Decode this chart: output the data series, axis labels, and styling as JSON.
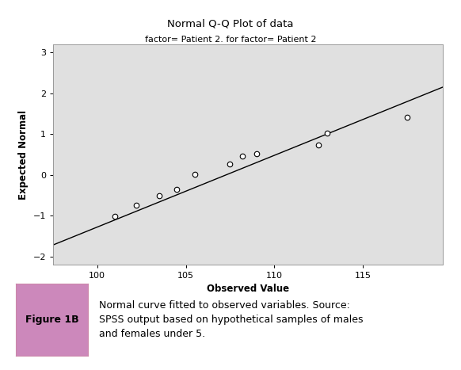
{
  "title": "Normal Q-Q Plot of data",
  "subtitle": "factor= Patient 2. for factor= Patient 2",
  "xlabel": "Observed Value",
  "ylabel": "Expected Normal",
  "xlim": [
    97.5,
    119.5
  ],
  "ylim": [
    -2.2,
    3.2
  ],
  "xticks": [
    100,
    105,
    110,
    115
  ],
  "yticks": [
    -2,
    -1,
    0,
    1,
    2,
    3
  ],
  "scatter_x": [
    101.0,
    102.2,
    103.5,
    104.5,
    105.5,
    107.5,
    108.2,
    109.0,
    112.5,
    113.0,
    117.5
  ],
  "scatter_y": [
    -1.02,
    -0.75,
    -0.52,
    -0.35,
    0.02,
    0.27,
    0.47,
    0.52,
    0.74,
    1.02,
    1.42
  ],
  "line_x": [
    97.5,
    119.5
  ],
  "line_y": [
    -1.72,
    2.15
  ],
  "plot_bg": "#e0e0e0",
  "fig_bg": "#ffffff",
  "border_color": "#cc88aa",
  "line_color": "#000000",
  "scatter_color": "#ffffff",
  "scatter_edge": "#000000",
  "title_fontsize": 9.5,
  "subtitle_fontsize": 8,
  "label_fontsize": 8.5,
  "tick_fontsize": 8,
  "figure_label": "Figure 1B",
  "figure_label_bg": "#cc88bb",
  "caption": "Normal curve fitted to observed variables. Source:\nSPSS output based on hypothetical samples of males\nand females under 5.",
  "caption_fontsize": 9
}
